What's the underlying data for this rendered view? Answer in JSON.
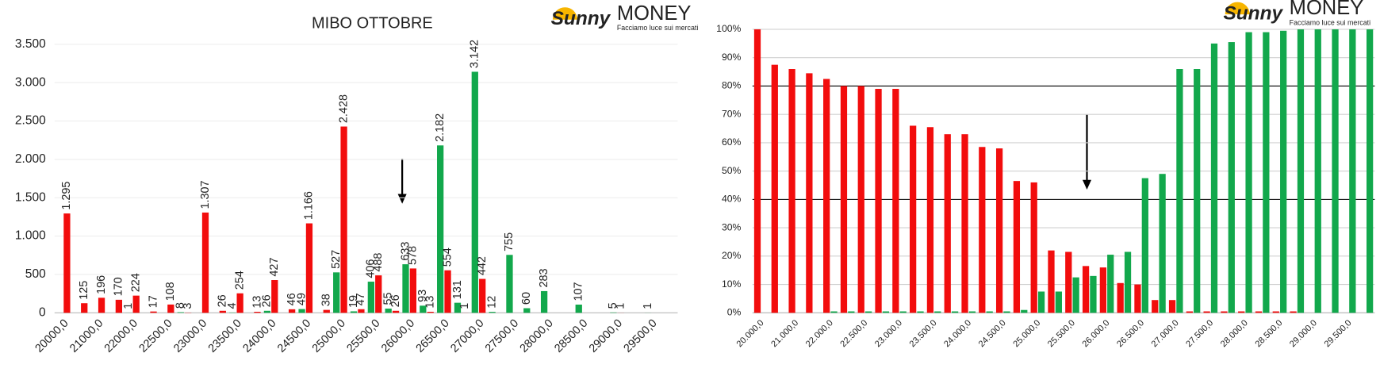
{
  "logo": {
    "brand_a": "Sunny",
    "brand_b": "MONEY",
    "tagline": "Facciamo luce sui mercati"
  },
  "chart_data": [
    {
      "type": "bar",
      "title": "MIBO OTTOBRE",
      "categories": [
        "20000,0",
        null,
        "21000,0",
        null,
        "22000,0",
        null,
        "22500,0",
        null,
        "23000,0",
        null,
        "23500,0",
        null,
        "24000,0",
        null,
        "24500,0",
        null,
        "25000,0",
        null,
        "25500,0",
        null,
        "26000,0",
        null,
        "26500,0",
        null,
        "27000,0",
        null,
        "27500,0",
        null,
        "28000,0",
        null,
        "28500,0",
        null,
        "29000,0",
        null,
        "29500,0",
        null
      ],
      "series": [
        {
          "color": "#12a84c",
          "values": [
            null,
            null,
            null,
            null,
            1,
            null,
            null,
            8,
            null,
            null,
            4,
            null,
            26,
            null,
            49,
            null,
            527,
            19,
            406,
            55,
            633,
            93,
            2182,
            131,
            3142,
            12,
            755,
            60,
            283,
            null,
            107,
            null,
            5,
            null,
            1,
            null
          ],
          "value_labels": [
            null,
            null,
            null,
            null,
            "1",
            null,
            null,
            "8",
            null,
            null,
            "4",
            null,
            "26",
            null,
            "49",
            null,
            "527",
            "19",
            "406",
            "55",
            "633",
            "93",
            "2.182",
            "131",
            "3.142",
            "12",
            "755",
            "60",
            "283",
            null,
            "107",
            null,
            "5",
            null,
            "1",
            null
          ]
        },
        {
          "color": "#f20d0d",
          "values": [
            1295,
            125,
            196,
            170,
            224,
            17,
            108,
            3,
            1307,
            26,
            254,
            13,
            427,
            46,
            1166,
            38,
            2428,
            47,
            488,
            26,
            578,
            13,
            554,
            1,
            442,
            null,
            null,
            null,
            null,
            null,
            null,
            null,
            1,
            null,
            null,
            null
          ],
          "value_labels": [
            "1.295",
            "125",
            "196",
            "170",
            "224",
            "17",
            "108",
            "3",
            "1.307",
            "26",
            "254",
            "13",
            "427",
            "46",
            "1.166",
            "38",
            "2.428",
            "47",
            "488",
            "26",
            "578",
            "13",
            "554",
            "1",
            "442",
            null,
            null,
            null,
            null,
            null,
            null,
            null,
            "1",
            null,
            null,
            null
          ]
        }
      ],
      "ylim": [
        0,
        3500
      ],
      "yticks": [
        0,
        500,
        {
          "value": 1000,
          "label": "1.000"
        },
        {
          "value": 1500,
          "label": "1.500"
        },
        {
          "value": 2000,
          "label": "2.000"
        },
        {
          "value": 2500,
          "label": "2.500"
        },
        {
          "value": 3000,
          "label": "3.000"
        },
        {
          "value": 3500,
          "label": "3.500"
        }
      ],
      "grid": true
    },
    {
      "type": "bar",
      "categories": [
        "20.000,0",
        null,
        "21.000,0",
        null,
        "22.000,0",
        null,
        "22.500,0",
        null,
        "23.000,0",
        null,
        "23.500,0",
        null,
        "24.000,0",
        null,
        "24.500,0",
        null,
        "25.000,0",
        null,
        "25.500,0",
        null,
        "26.000,0",
        null,
        "26.500,0",
        null,
        "27.000,0",
        null,
        "27.500,0",
        null,
        "28.000,0",
        null,
        "28.500,0",
        null,
        "29.000,0",
        null,
        "29.500,0",
        null
      ],
      "series": [
        {
          "color": "#f20d0d",
          "values": [
            100,
            87.5,
            86,
            84.5,
            82.5,
            80,
            80,
            79,
            79,
            66,
            65.5,
            63,
            63,
            58.5,
            58,
            46.5,
            46,
            22,
            21.5,
            16.5,
            16,
            10.5,
            10,
            4.5,
            4.5,
            0.5,
            0.5,
            0.5,
            0.5,
            0.5,
            0.5,
            0.5,
            0,
            0,
            0,
            0
          ]
        },
        {
          "color": "#12a84c",
          "values": [
            0,
            0,
            0,
            0,
            0.5,
            0.5,
            0.5,
            0.5,
            0.5,
            0.5,
            0.5,
            0.5,
            0.5,
            0.5,
            0.5,
            1,
            7.5,
            7.5,
            12.5,
            13,
            20.5,
            21.5,
            47.5,
            49,
            86,
            86,
            95,
            95.5,
            99,
            99,
            99.5,
            100,
            100,
            100,
            100,
            100
          ]
        }
      ],
      "ylim": [
        0,
        100
      ],
      "yticks": [
        {
          "value": 0,
          "label": "0%"
        },
        {
          "value": 10,
          "label": "10%"
        },
        {
          "value": 20,
          "label": "20%"
        },
        {
          "value": 30,
          "label": "30%"
        },
        {
          "value": 40,
          "label": "40%"
        },
        {
          "value": 50,
          "label": "50%"
        },
        {
          "value": 60,
          "label": "60%"
        },
        {
          "value": 70,
          "label": "70%"
        },
        {
          "value": 80,
          "label": "80%"
        },
        {
          "value": 90,
          "label": "90%"
        },
        {
          "value": 100,
          "label": "100%"
        }
      ],
      "reference_lines": [
        80,
        40
      ],
      "grid": true
    }
  ]
}
